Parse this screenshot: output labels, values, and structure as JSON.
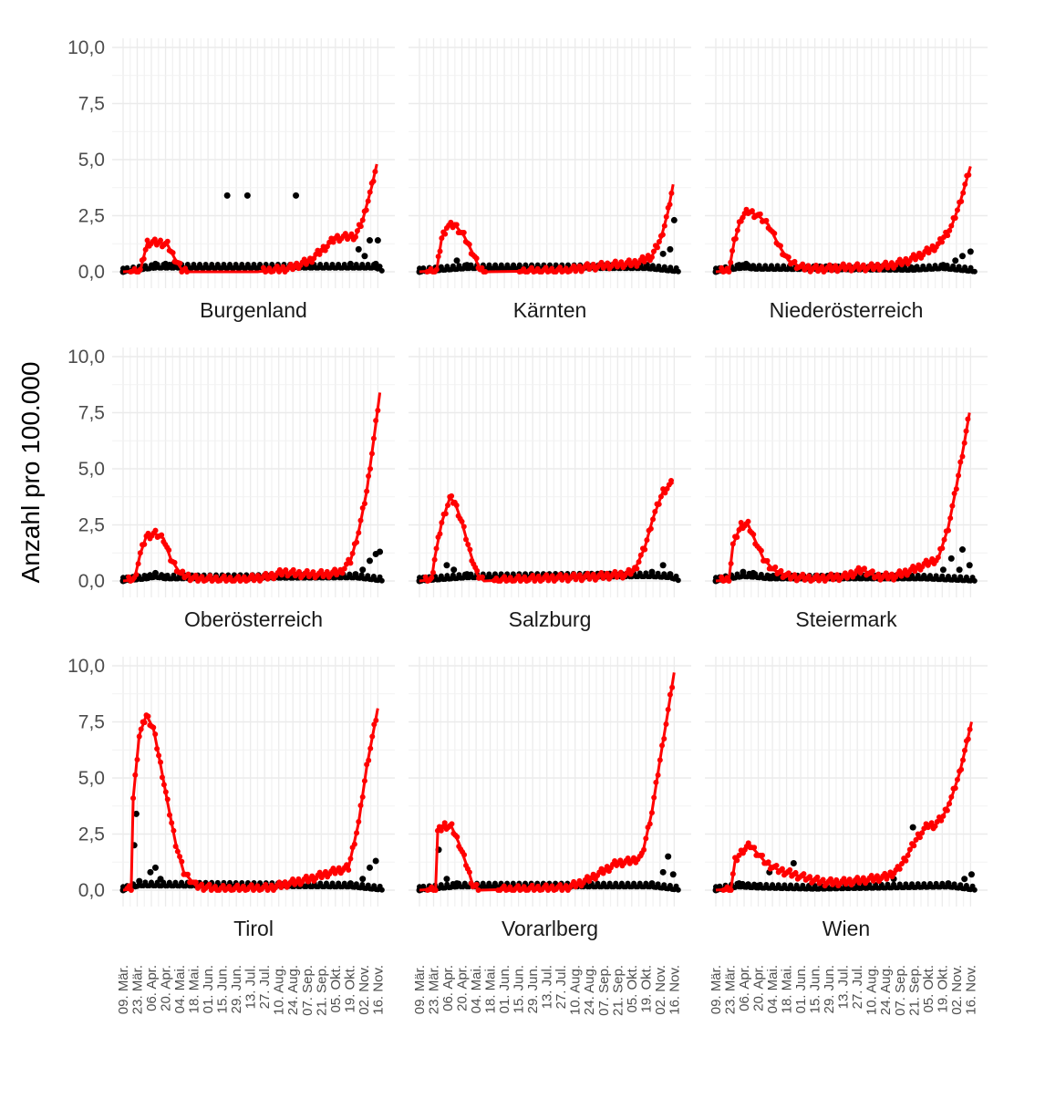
{
  "colors": {
    "smooth": "#ff0000",
    "raw": "#000000",
    "grid_major": "#ebebeb",
    "grid_minor": "#f2f2f2"
  },
  "chart_data": {
    "type": "scatter",
    "ylabel": "Anzahl pro 100.000",
    "ylim": [
      0,
      10
    ],
    "yticks": [
      0,
      2.5,
      5,
      7.5,
      10
    ],
    "ytick_labels": [
      "0,0",
      "2,5",
      "5,0",
      "7,5",
      "10,0"
    ],
    "grid": true,
    "facet_layout": "3x3",
    "x_range": [
      "2020-03-09",
      "2020-11-22"
    ],
    "xticks": [
      "2020-03-09",
      "2020-03-23",
      "2020-04-06",
      "2020-04-20",
      "2020-05-04",
      "2020-05-18",
      "2020-06-01",
      "2020-06-15",
      "2020-06-29",
      "2020-07-13",
      "2020-07-27",
      "2020-08-10",
      "2020-08-24",
      "2020-09-07",
      "2020-09-21",
      "2020-10-05",
      "2020-10-19",
      "2020-11-02",
      "2020-11-16"
    ],
    "xtick_labels": [
      "09. Mär.",
      "23. Mär.",
      "06. Apr.",
      "20. Apr.",
      "04. Mai.",
      "18. Mai.",
      "01. Jun.",
      "15. Jun.",
      "29. Jun.",
      "13. Jul.",
      "27. Jul.",
      "10. Aug.",
      "24. Aug.",
      "07. Sep.",
      "21. Sep.",
      "05. Okt.",
      "19. Okt.",
      "02. Nov.",
      "16. Nov."
    ],
    "panels": [
      {
        "name": "Burgenland",
        "smooth": [
          [
            "2020-03-09",
            0
          ],
          [
            "2020-03-26",
            0.05
          ],
          [
            "2020-04-02",
            1.3
          ],
          [
            "2020-04-15",
            1.3
          ],
          [
            "2020-04-22",
            1.2
          ],
          [
            "2020-04-29",
            0.6
          ],
          [
            "2020-05-06",
            0.1
          ],
          [
            "2020-05-13",
            0
          ],
          [
            "2020-07-20",
            0
          ],
          [
            "2020-08-20",
            0.15
          ],
          [
            "2020-09-10",
            0.5
          ],
          [
            "2020-09-25",
            1.1
          ],
          [
            "2020-10-05",
            1.5
          ],
          [
            "2020-10-25",
            1.6
          ],
          [
            "2020-11-01",
            2.3
          ],
          [
            "2020-11-10",
            3.8
          ],
          [
            "2020-11-15",
            4.8
          ]
        ],
        "raw": [
          [
            "2020-03-09",
            0
          ],
          [
            "2020-04-10",
            0.35
          ],
          [
            "2020-04-20",
            0.35
          ],
          [
            "2020-04-28",
            0.35
          ],
          [
            "2020-06-20",
            3.4
          ],
          [
            "2020-07-10",
            3.4
          ],
          [
            "2020-08-27",
            3.4
          ],
          [
            "2020-09-10",
            0.35
          ],
          [
            "2020-10-20",
            0.35
          ],
          [
            "2020-10-28",
            1.0
          ],
          [
            "2020-11-03",
            0.7
          ],
          [
            "2020-11-08",
            1.4
          ],
          [
            "2020-11-14",
            0.35
          ],
          [
            "2020-11-16",
            1.4
          ]
        ]
      },
      {
        "name": "Kärnten",
        "smooth": [
          [
            "2020-03-09",
            0
          ],
          [
            "2020-03-26",
            0.05
          ],
          [
            "2020-03-31",
            1.5
          ],
          [
            "2020-04-05",
            2.0
          ],
          [
            "2020-04-13",
            2.1
          ],
          [
            "2020-04-22",
            1.6
          ],
          [
            "2020-05-01",
            0.8
          ],
          [
            "2020-05-08",
            0.1
          ],
          [
            "2020-05-15",
            0
          ],
          [
            "2020-08-01",
            0.05
          ],
          [
            "2020-08-20",
            0.2
          ],
          [
            "2020-09-15",
            0.3
          ],
          [
            "2020-10-10",
            0.4
          ],
          [
            "2020-10-25",
            0.7
          ],
          [
            "2020-11-03",
            1.5
          ],
          [
            "2020-11-10",
            2.7
          ],
          [
            "2020-11-15",
            3.9
          ]
        ],
        "raw": [
          [
            "2020-03-09",
            0
          ],
          [
            "2020-04-15",
            0.5
          ],
          [
            "2020-04-25",
            0.3
          ],
          [
            "2020-10-20",
            0.3
          ],
          [
            "2020-11-05",
            0.8
          ],
          [
            "2020-11-12",
            1.0
          ],
          [
            "2020-11-16",
            2.3
          ]
        ]
      },
      {
        "name": "Niederösterreich",
        "smooth": [
          [
            "2020-03-09",
            0
          ],
          [
            "2020-03-22",
            0.05
          ],
          [
            "2020-03-27",
            1.3
          ],
          [
            "2020-04-03",
            2.4
          ],
          [
            "2020-04-10",
            2.7
          ],
          [
            "2020-04-20",
            2.5
          ],
          [
            "2020-04-30",
            2.1
          ],
          [
            "2020-05-10",
            1.2
          ],
          [
            "2020-05-20",
            0.5
          ],
          [
            "2020-06-01",
            0.2
          ],
          [
            "2020-06-20",
            0.12
          ],
          [
            "2020-07-15",
            0.2
          ],
          [
            "2020-08-10",
            0.2
          ],
          [
            "2020-08-30",
            0.3
          ],
          [
            "2020-09-15",
            0.5
          ],
          [
            "2020-09-30",
            0.8
          ],
          [
            "2020-10-15",
            1.2
          ],
          [
            "2020-10-28",
            2.0
          ],
          [
            "2020-11-05",
            3.0
          ],
          [
            "2020-11-16",
            4.7
          ]
        ],
        "raw": [
          [
            "2020-03-09",
            0
          ],
          [
            "2020-04-01",
            0.3
          ],
          [
            "2020-04-08",
            0.35
          ],
          [
            "2020-04-15",
            0.25
          ],
          [
            "2020-09-20",
            0.15
          ],
          [
            "2020-10-20",
            0.3
          ],
          [
            "2020-11-01",
            0.5
          ],
          [
            "2020-11-08",
            0.7
          ],
          [
            "2020-11-16",
            0.9
          ]
        ]
      },
      {
        "name": "Oberösterreich",
        "smooth": [
          [
            "2020-03-09",
            0
          ],
          [
            "2020-03-20",
            0.05
          ],
          [
            "2020-03-26",
            1.2
          ],
          [
            "2020-04-01",
            2.0
          ],
          [
            "2020-04-10",
            2.1
          ],
          [
            "2020-04-18",
            1.9
          ],
          [
            "2020-04-25",
            1.0
          ],
          [
            "2020-05-05",
            0.3
          ],
          [
            "2020-05-20",
            0.1
          ],
          [
            "2020-07-01",
            0.05
          ],
          [
            "2020-08-01",
            0.2
          ],
          [
            "2020-08-15",
            0.4
          ],
          [
            "2020-09-01",
            0.3
          ],
          [
            "2020-09-25",
            0.3
          ],
          [
            "2020-10-10",
            0.4
          ],
          [
            "2020-10-20",
            0.9
          ],
          [
            "2020-10-28",
            2.2
          ],
          [
            "2020-11-05",
            4.0
          ],
          [
            "2020-11-12",
            6.3
          ],
          [
            "2020-11-18",
            8.4
          ]
        ],
        "raw": [
          [
            "2020-03-09",
            0
          ],
          [
            "2020-04-01",
            0.2
          ],
          [
            "2020-04-10",
            0.35
          ],
          [
            "2020-04-20",
            0.2
          ],
          [
            "2020-10-25",
            0.3
          ],
          [
            "2020-11-01",
            0.5
          ],
          [
            "2020-11-08",
            0.9
          ],
          [
            "2020-11-14",
            1.2
          ],
          [
            "2020-11-18",
            1.3
          ]
        ]
      },
      {
        "name": "Salzburg",
        "smooth": [
          [
            "2020-03-09",
            0
          ],
          [
            "2020-03-21",
            0.05
          ],
          [
            "2020-03-24",
            1.0
          ],
          [
            "2020-03-31",
            2.6
          ],
          [
            "2020-04-08",
            3.7
          ],
          [
            "2020-04-13",
            3.5
          ],
          [
            "2020-04-20",
            2.6
          ],
          [
            "2020-04-28",
            1.3
          ],
          [
            "2020-05-05",
            0.3
          ],
          [
            "2020-05-12",
            0
          ],
          [
            "2020-07-01",
            0.1
          ],
          [
            "2020-08-01",
            0.15
          ],
          [
            "2020-09-01",
            0.2
          ],
          [
            "2020-09-30",
            0.3
          ],
          [
            "2020-10-08",
            0.5
          ],
          [
            "2020-10-18",
            1.5
          ],
          [
            "2020-10-26",
            2.8
          ],
          [
            "2020-11-05",
            4.0
          ],
          [
            "2020-11-15",
            4.4
          ]
        ],
        "raw": [
          [
            "2020-03-09",
            0
          ],
          [
            "2020-04-05",
            0.7
          ],
          [
            "2020-04-12",
            0.5
          ],
          [
            "2020-04-25",
            0.3
          ],
          [
            "2020-10-25",
            0.4
          ],
          [
            "2020-11-05",
            0.7
          ],
          [
            "2020-11-12",
            0.3
          ]
        ]
      },
      {
        "name": "Steiermark",
        "smooth": [
          [
            "2020-03-09",
            0
          ],
          [
            "2020-03-22",
            0.05
          ],
          [
            "2020-03-26",
            1.6
          ],
          [
            "2020-04-03",
            2.5
          ],
          [
            "2020-04-10",
            2.5
          ],
          [
            "2020-04-17",
            1.8
          ],
          [
            "2020-04-25",
            1.0
          ],
          [
            "2020-05-05",
            0.5
          ],
          [
            "2020-05-20",
            0.2
          ],
          [
            "2020-06-15",
            0.1
          ],
          [
            "2020-07-15",
            0.2
          ],
          [
            "2020-08-01",
            0.5
          ],
          [
            "2020-08-15",
            0.2
          ],
          [
            "2020-09-01",
            0.2
          ],
          [
            "2020-09-20",
            0.5
          ],
          [
            "2020-10-05",
            0.8
          ],
          [
            "2020-10-15",
            1.0
          ],
          [
            "2020-10-25",
            2.4
          ],
          [
            "2020-11-02",
            4.2
          ],
          [
            "2020-11-10",
            6.2
          ],
          [
            "2020-11-15",
            7.5
          ]
        ],
        "raw": [
          [
            "2020-03-09",
            0
          ],
          [
            "2020-04-05",
            0.4
          ],
          [
            "2020-04-15",
            0.35
          ],
          [
            "2020-05-01",
            0.2
          ],
          [
            "2020-10-01",
            0.2
          ],
          [
            "2020-10-20",
            0.5
          ],
          [
            "2020-10-28",
            1.0
          ],
          [
            "2020-11-05",
            0.5
          ],
          [
            "2020-11-08",
            1.4
          ],
          [
            "2020-11-15",
            0.7
          ]
        ]
      },
      {
        "name": "Tirol",
        "smooth": [
          [
            "2020-03-09",
            0
          ],
          [
            "2020-03-17",
            0.05
          ],
          [
            "2020-03-19",
            4.1
          ],
          [
            "2020-03-25",
            6.9
          ],
          [
            "2020-04-01",
            7.8
          ],
          [
            "2020-04-08",
            7.2
          ],
          [
            "2020-04-15",
            5.6
          ],
          [
            "2020-04-22",
            3.9
          ],
          [
            "2020-04-30",
            2.1
          ],
          [
            "2020-05-08",
            0.8
          ],
          [
            "2020-05-20",
            0.2
          ],
          [
            "2020-06-10",
            0.05
          ],
          [
            "2020-08-01",
            0.1
          ],
          [
            "2020-08-20",
            0.3
          ],
          [
            "2020-09-10",
            0.5
          ],
          [
            "2020-10-01",
            0.8
          ],
          [
            "2020-10-18",
            1.0
          ],
          [
            "2020-10-28",
            3.0
          ],
          [
            "2020-11-05",
            5.5
          ],
          [
            "2020-11-16",
            8.1
          ]
        ],
        "raw": [
          [
            "2020-03-09",
            0
          ],
          [
            "2020-03-20",
            2.0
          ],
          [
            "2020-03-22",
            3.4
          ],
          [
            "2020-03-25",
            0.4
          ],
          [
            "2020-04-05",
            0.8
          ],
          [
            "2020-04-10",
            1.0
          ],
          [
            "2020-04-15",
            0.5
          ],
          [
            "2020-10-20",
            0.3
          ],
          [
            "2020-11-01",
            0.5
          ],
          [
            "2020-11-08",
            1.0
          ],
          [
            "2020-11-14",
            1.3
          ]
        ]
      },
      {
        "name": "Vorarlberg",
        "smooth": [
          [
            "2020-03-09",
            0
          ],
          [
            "2020-03-25",
            0.05
          ],
          [
            "2020-03-27",
            2.6
          ],
          [
            "2020-04-03",
            2.9
          ],
          [
            "2020-04-10",
            2.8
          ],
          [
            "2020-04-17",
            2.1
          ],
          [
            "2020-04-24",
            1.2
          ],
          [
            "2020-05-01",
            0.2
          ],
          [
            "2020-05-08",
            0
          ],
          [
            "2020-08-01",
            0.1
          ],
          [
            "2020-08-20",
            0.4
          ],
          [
            "2020-09-05",
            0.8
          ],
          [
            "2020-09-20",
            1.2
          ],
          [
            "2020-10-05",
            1.3
          ],
          [
            "2020-10-15",
            1.5
          ],
          [
            "2020-10-25",
            3.5
          ],
          [
            "2020-11-02",
            5.8
          ],
          [
            "2020-11-10",
            8.0
          ],
          [
            "2020-11-16",
            9.7
          ]
        ],
        "raw": [
          [
            "2020-03-09",
            0
          ],
          [
            "2020-03-28",
            1.8
          ],
          [
            "2020-04-05",
            0.5
          ],
          [
            "2020-04-15",
            0.3
          ],
          [
            "2020-10-25",
            0.3
          ],
          [
            "2020-11-05",
            0.8
          ],
          [
            "2020-11-10",
            1.5
          ],
          [
            "2020-11-15",
            0.7
          ]
        ]
      },
      {
        "name": "Wien",
        "smooth": [
          [
            "2020-03-09",
            0
          ],
          [
            "2020-03-24",
            0.05
          ],
          [
            "2020-03-28",
            1.3
          ],
          [
            "2020-04-05",
            1.8
          ],
          [
            "2020-04-12",
            2.0
          ],
          [
            "2020-04-20",
            1.6
          ],
          [
            "2020-04-28",
            1.2
          ],
          [
            "2020-05-10",
            0.9
          ],
          [
            "2020-05-25",
            0.7
          ],
          [
            "2020-06-10",
            0.5
          ],
          [
            "2020-06-25",
            0.35
          ],
          [
            "2020-07-10",
            0.35
          ],
          [
            "2020-07-25",
            0.4
          ],
          [
            "2020-08-10",
            0.5
          ],
          [
            "2020-08-25",
            0.6
          ],
          [
            "2020-09-05",
            0.9
          ],
          [
            "2020-09-15",
            1.6
          ],
          [
            "2020-09-25",
            2.4
          ],
          [
            "2020-10-05",
            2.9
          ],
          [
            "2020-10-12",
            2.9
          ],
          [
            "2020-10-20",
            3.3
          ],
          [
            "2020-10-28",
            4.1
          ],
          [
            "2020-11-05",
            5.2
          ],
          [
            "2020-11-12",
            6.5
          ],
          [
            "2020-11-17",
            7.5
          ]
        ],
        "raw": [
          [
            "2020-03-09",
            0
          ],
          [
            "2020-04-01",
            0.3
          ],
          [
            "2020-04-10",
            0.25
          ],
          [
            "2020-04-20",
            0.2
          ],
          [
            "2020-05-01",
            0.8
          ],
          [
            "2020-05-25",
            1.2
          ],
          [
            "2020-06-15",
            0.1
          ],
          [
            "2020-09-01",
            0.5
          ],
          [
            "2020-09-20",
            2.8
          ],
          [
            "2020-10-25",
            0.3
          ],
          [
            "2020-11-10",
            0.5
          ],
          [
            "2020-11-17",
            0.7
          ]
        ]
      }
    ]
  }
}
